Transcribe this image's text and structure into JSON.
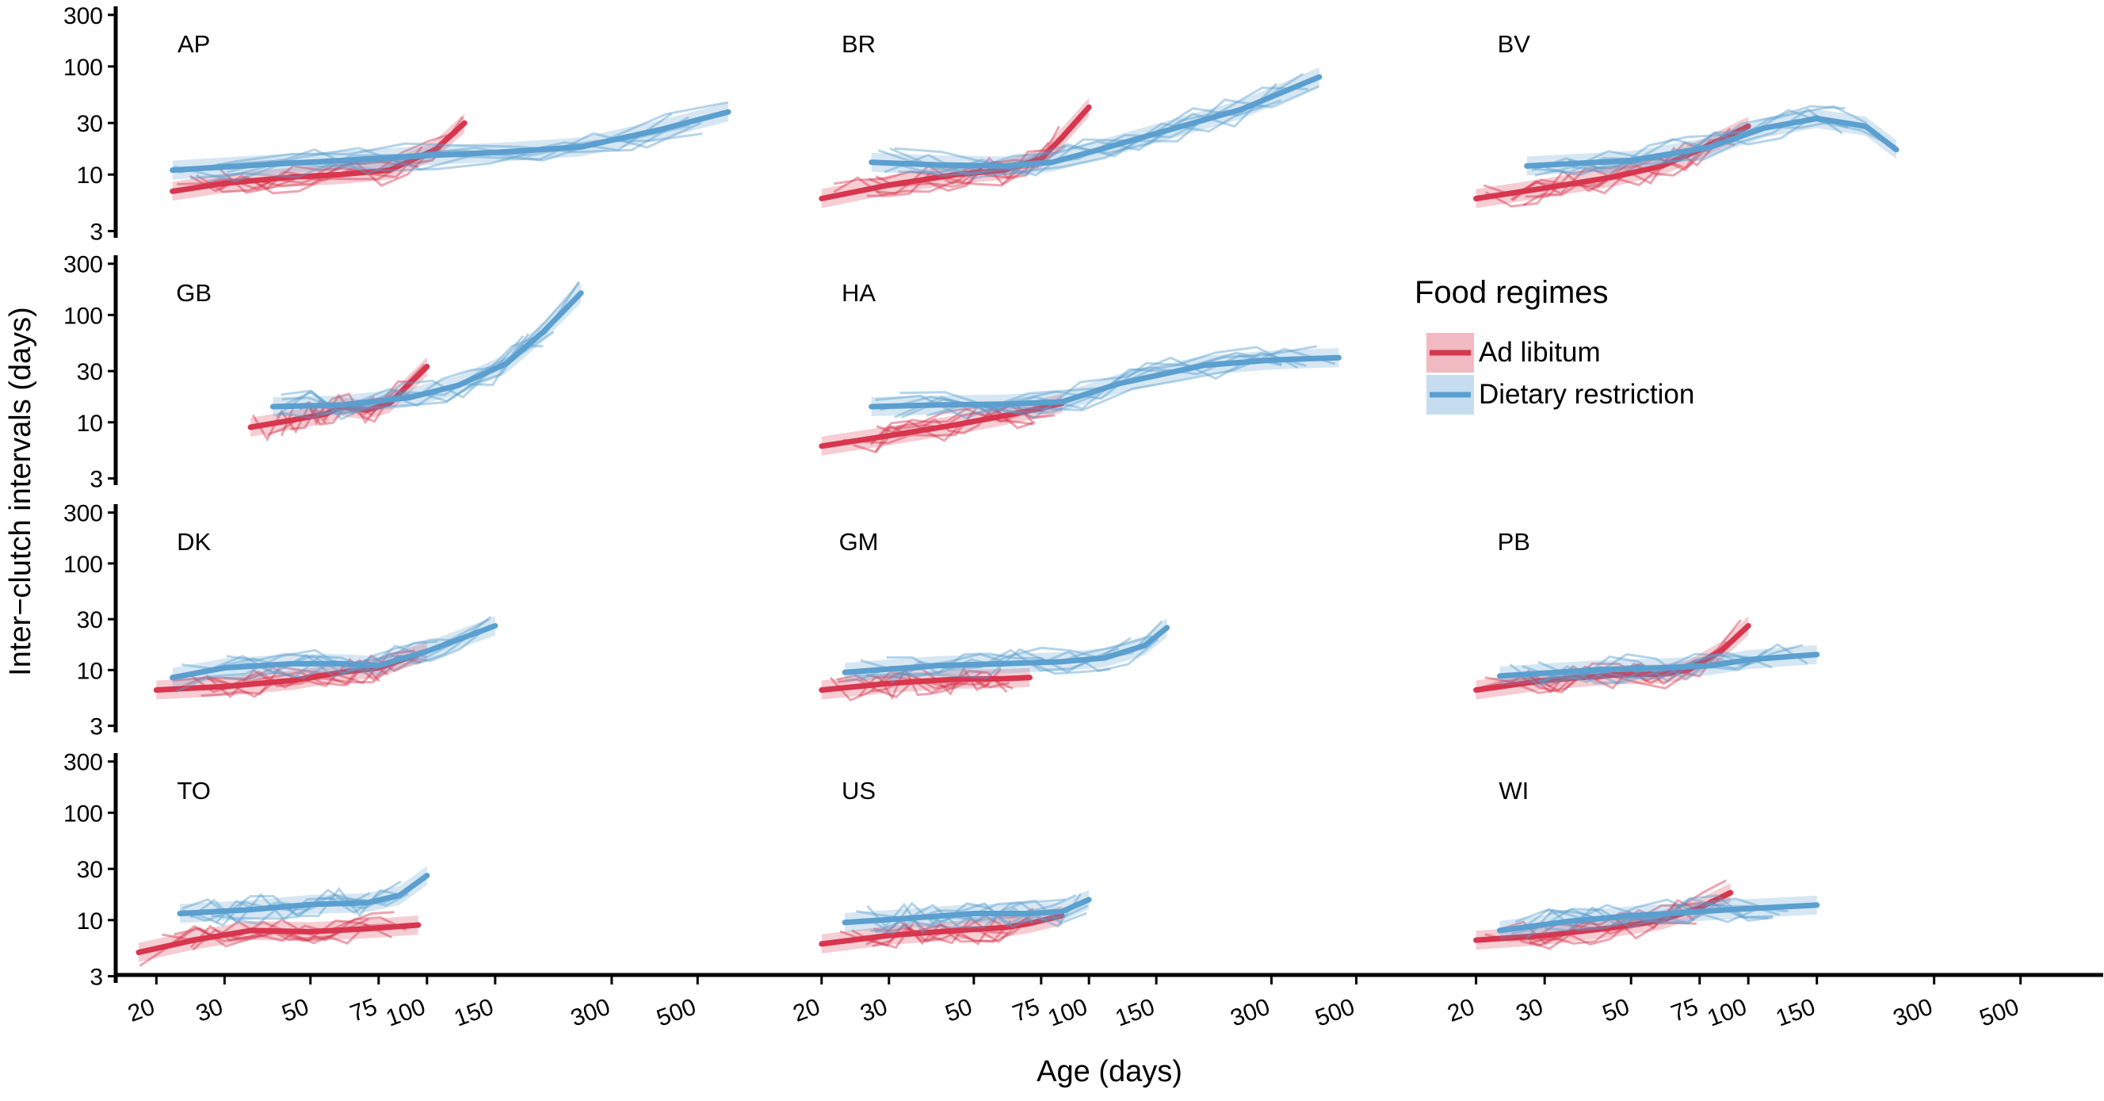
{
  "chart_data": {
    "type": "line",
    "faceted": true,
    "x_scale": "log",
    "y_scale": "log",
    "xlabel": "Age (days)",
    "ylabel": "Inter−clutch intervals (days)",
    "xlim": [
      16,
      800
    ],
    "ylim": [
      2.6,
      360
    ],
    "x_ticks": [
      20,
      30,
      50,
      75,
      100,
      150,
      300,
      500
    ],
    "x_tick_labels": [
      "20",
      "30",
      "50",
      "75",
      "100",
      "150",
      "300",
      "500"
    ],
    "y_ticks": [
      3,
      10,
      30,
      100,
      300
    ],
    "y_tick_labels": [
      "3",
      "10",
      "30",
      "100",
      "300"
    ],
    "legend": {
      "title": "Food regimes",
      "position": "right",
      "items": [
        {
          "label": "Ad libitum",
          "color": "#d7364e"
        },
        {
          "label": "Dietary restriction",
          "color": "#5a9fcf"
        }
      ]
    },
    "panels": [
      {
        "label": "AP",
        "series": [
          {
            "name": "Ad libitum",
            "x": [
              22,
              30,
              45,
              60,
              80,
              105,
              125
            ],
            "y": [
              7,
              8.3,
              9.5,
              10,
              11,
              17,
              30
            ]
          },
          {
            "name": "Dietary restriction",
            "x": [
              22,
              40,
              60,
              100,
              150,
              250,
              400,
              600
            ],
            "y": [
              11,
              12.5,
              13.5,
              15,
              16,
              18,
              26,
              38
            ]
          }
        ]
      },
      {
        "label": "BR",
        "series": [
          {
            "name": "Ad libitum",
            "x": [
              20,
              30,
              45,
              60,
              75,
              85,
              100
            ],
            "y": [
              6,
              8,
              10,
              11,
              14,
              22,
              42
            ]
          },
          {
            "name": "Dietary restriction",
            "x": [
              27,
              40,
              60,
              80,
              100,
              150,
              250,
              400
            ],
            "y": [
              13,
              12.3,
              12,
              13,
              16,
              24,
              40,
              80
            ]
          }
        ]
      },
      {
        "label": "BV",
        "series": [
          {
            "name": "Ad libitum",
            "x": [
              20,
              30,
              45,
              60,
              75,
              100
            ],
            "y": [
              6,
              7.5,
              9.5,
              12,
              17,
              28
            ]
          },
          {
            "name": "Dietary restriction",
            "x": [
              27,
              50,
              80,
              110,
              150,
              200,
              240
            ],
            "y": [
              12,
              13.5,
              18,
              27,
              33,
              28,
              17
            ]
          }
        ]
      },
      {
        "label": "GB",
        "series": [
          {
            "name": "Ad libitum",
            "x": [
              35,
              45,
              55,
              60,
              70,
              80,
              100
            ],
            "y": [
              9,
              10.5,
              12,
              14,
              13,
              15,
              33
            ]
          },
          {
            "name": "Dietary restriction",
            "x": [
              40,
              60,
              90,
              120,
              160,
              200,
              250
            ],
            "y": [
              14,
              14.5,
              17,
              22,
              35,
              70,
              160
            ]
          }
        ]
      },
      {
        "label": "HA",
        "series": [
          {
            "name": "Ad libitum",
            "x": [
              20,
              30,
              45,
              60,
              75,
              85
            ],
            "y": [
              6,
              7.5,
              9.5,
              11.5,
              13.5,
              15
            ]
          },
          {
            "name": "Dietary restriction",
            "x": [
              27,
              40,
              60,
              85,
              120,
              200,
              300,
              450
            ],
            "y": [
              14,
              14.5,
              14.8,
              15.5,
              23,
              34,
              38,
              40
            ]
          }
        ]
      },
      {
        "label": "DK",
        "series": [
          {
            "name": "Ad libitum",
            "x": [
              20,
              30,
              45,
              60,
              75,
              100
            ],
            "y": [
              6.5,
              7,
              8,
              9.5,
              10.5,
              15
            ]
          },
          {
            "name": "Dietary restriction",
            "x": [
              22,
              30,
              45,
              60,
              75,
              100,
              150
            ],
            "y": [
              8.5,
              10.5,
              11.5,
              11.5,
              11,
              15,
              26
            ]
          }
        ]
      },
      {
        "label": "GM",
        "series": [
          {
            "name": "Ad libitum",
            "x": [
              20,
              30,
              45,
              60,
              70
            ],
            "y": [
              6.5,
              7.5,
              8.2,
              8.3,
              8.5
            ]
          },
          {
            "name": "Dietary restriction",
            "x": [
              23,
              40,
              60,
              85,
              110,
              140,
              160
            ],
            "y": [
              9.5,
              11,
              11.5,
              12,
              13,
              17,
              25
            ]
          }
        ]
      },
      {
        "label": "PB",
        "series": [
          {
            "name": "Ad libitum",
            "x": [
              20,
              30,
              45,
              60,
              70,
              85,
              100
            ],
            "y": [
              6.5,
              8,
              9,
              9.2,
              10,
              15,
              26
            ]
          },
          {
            "name": "Dietary restriction",
            "x": [
              23,
              40,
              60,
              80,
              100,
              150
            ],
            "y": [
              8.8,
              10,
              10.5,
              11,
              12.5,
              14
            ]
          }
        ]
      },
      {
        "label": "TO",
        "series": [
          {
            "name": "Ad libitum",
            "x": [
              18,
              25,
              35,
              50,
              70,
              95
            ],
            "y": [
              5,
              6.5,
              8,
              7.8,
              8.3,
              9
            ]
          },
          {
            "name": "Dietary restriction",
            "x": [
              23,
              35,
              50,
              70,
              85,
              100
            ],
            "y": [
              11.5,
              12.5,
              14,
              14.5,
              17,
              26
            ]
          }
        ]
      },
      {
        "label": "US",
        "series": [
          {
            "name": "Ad libitum",
            "x": [
              20,
              30,
              45,
              60,
              70,
              85
            ],
            "y": [
              6,
              7.2,
              8,
              8.5,
              9.3,
              11
            ]
          },
          {
            "name": "Dietary restriction",
            "x": [
              23,
              35,
              50,
              70,
              85,
              100
            ],
            "y": [
              9.5,
              10.5,
              11.5,
              11.5,
              12,
              15.5
            ]
          }
        ]
      },
      {
        "label": "WI",
        "series": [
          {
            "name": "Ad libitum",
            "x": [
              20,
              30,
              45,
              60,
              75,
              90
            ],
            "y": [
              6.5,
              7.2,
              8.5,
              10,
              13,
              18
            ]
          },
          {
            "name": "Dietary restriction",
            "x": [
              23,
              35,
              50,
              75,
              100,
              150
            ],
            "y": [
              8,
              9.8,
              11,
              12,
              12.8,
              13.8
            ]
          }
        ]
      }
    ]
  }
}
